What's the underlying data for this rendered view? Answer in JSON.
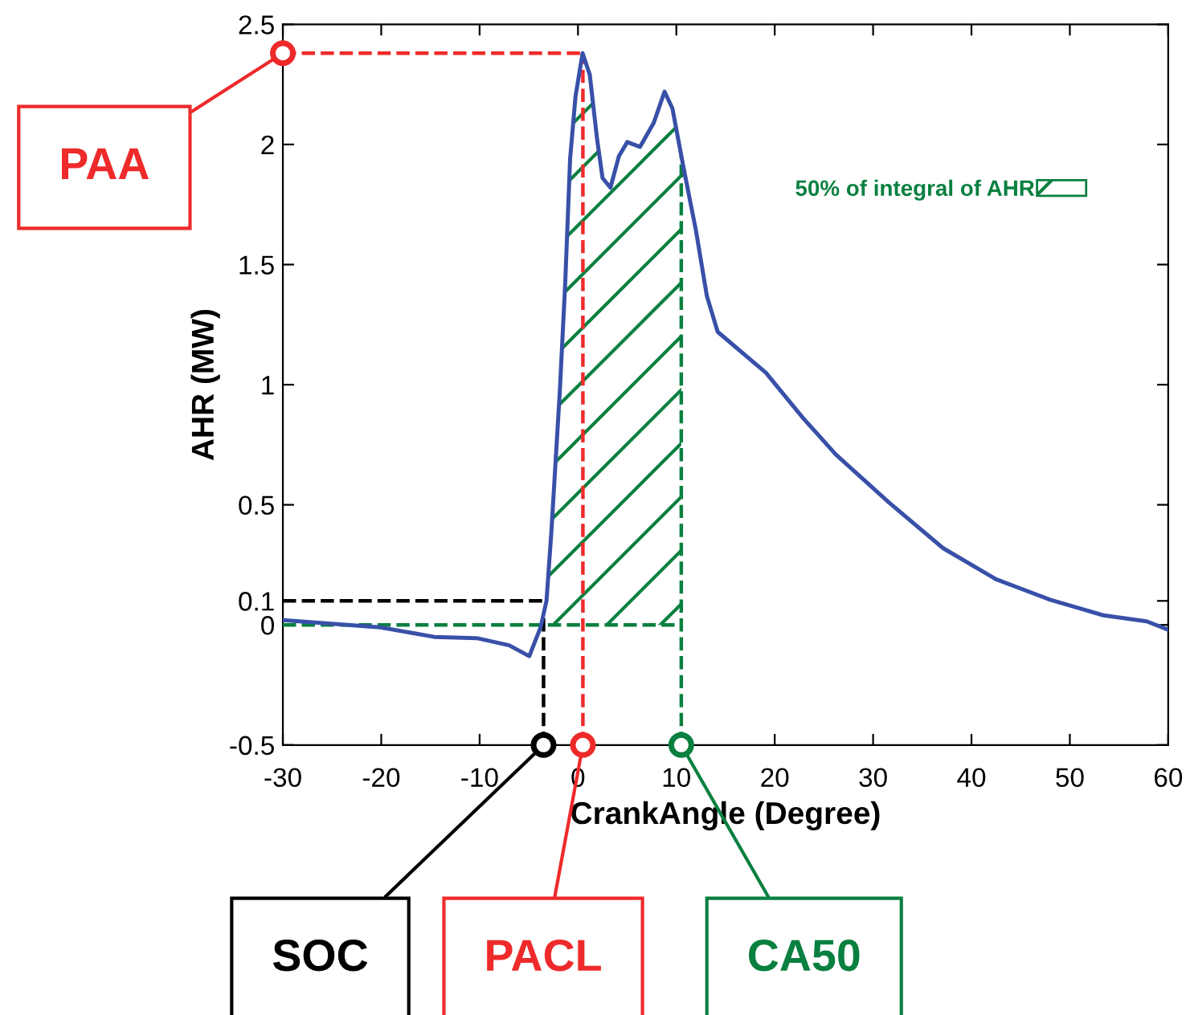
{
  "chart_data": {
    "type": "line",
    "xlabel": "CrankAngle (Degree)",
    "ylabel": "AHR (MW)",
    "x": [
      -30,
      -20.1,
      -14.6,
      -10.3,
      -7.0,
      -4.95,
      -3.8,
      -3.2,
      -2.7,
      -1.85,
      -1.3,
      -0.8,
      -0.25,
      0.47,
      1.2,
      1.95,
      2.5,
      3.3,
      4.15,
      5.0,
      6.3,
      7.7,
      8.8,
      9.6,
      10.7,
      12.0,
      13.1,
      14.2,
      19.1,
      22.9,
      26.2,
      31.6,
      37.1,
      42.5,
      48.0,
      53.4,
      57.8,
      60
    ],
    "series": [
      {
        "color": "#3850a8",
        "values": [
          0.02,
          -0.01,
          -0.05,
          -0.055,
          -0.085,
          -0.13,
          -0.01,
          0.1,
          0.39,
          0.97,
          1.42,
          1.94,
          2.2,
          2.38,
          2.29,
          2.02,
          1.86,
          1.82,
          1.95,
          2.01,
          1.99,
          2.09,
          2.22,
          2.15,
          1.91,
          1.64,
          1.37,
          1.22,
          1.05,
          0.86,
          0.71,
          0.51,
          0.32,
          0.19,
          0.105,
          0.04,
          0.015,
          -0.02
        ]
      },
      {
        "type": "area",
        "name": "50% of integral of AHR",
        "color": "#0a8040",
        "x": [
          -3.5,
          -3.2,
          -2.7,
          -1.85,
          -1.3,
          -0.8,
          -0.25,
          0.47,
          1.2,
          1.95,
          2.5,
          3.3,
          4.15,
          5.0,
          6.3,
          7.7,
          8.8,
          9.6,
          10.5
        ],
        "values": [
          0.0,
          0.1,
          0.39,
          0.97,
          1.42,
          1.94,
          2.2,
          2.38,
          2.29,
          2.02,
          1.86,
          1.82,
          1.95,
          2.01,
          1.99,
          2.09,
          2.22,
          2.15,
          1.95
        ]
      }
    ],
    "xlim": [
      -30,
      60
    ],
    "xticks": [
      -30,
      -20,
      -10,
      0,
      10,
      20,
      30,
      40,
      50,
      60
    ],
    "ylim": [
      -0.5,
      2.5
    ],
    "yticks": [
      -0.5,
      0,
      0.1,
      0.5,
      1,
      1.5,
      2,
      2.5
    ],
    "grid": false,
    "legend": "right",
    "line_style": "solid",
    "marker": "none",
    "ref_lines": [
      {
        "axis": "y",
        "value": 2.38,
        "label": "PAA",
        "color": "#ee2a2a",
        "line_style": "dashed"
      },
      {
        "axis": "x",
        "value": -3.5,
        "label": "SOC",
        "color": "#000000",
        "line_style": "dashed"
      },
      {
        "axis": "x",
        "value": 0.5,
        "label": "PACL",
        "color": "#ee2a2a",
        "line_style": "dashed"
      },
      {
        "axis": "x",
        "value": 10.5,
        "label": "CA50",
        "color": "#0a8040",
        "line_style": "dashed"
      },
      {
        "axis": "y",
        "value": 0.1,
        "color": "#000000",
        "line_style": "dashed"
      },
      {
        "axis": "y",
        "value": 0,
        "color": "#0a8040",
        "line_style": "dashed"
      }
    ]
  }
}
